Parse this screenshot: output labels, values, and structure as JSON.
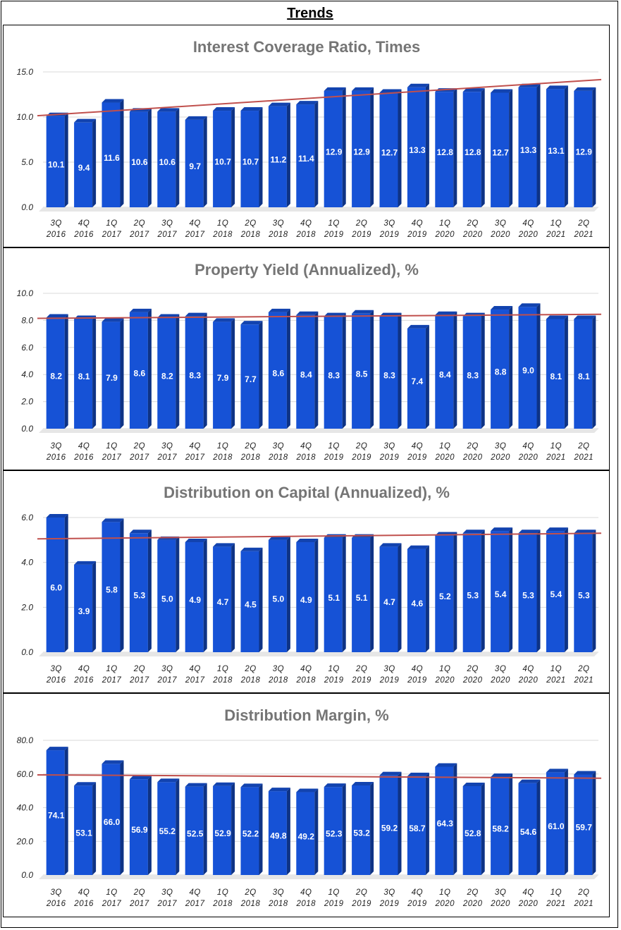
{
  "page": {
    "title": "Trends"
  },
  "chart_data": [
    {
      "type": "bar",
      "title": "Interest Coverage Ratio, Times",
      "categories": [
        [
          "3Q",
          "2016"
        ],
        [
          "4Q",
          "2016"
        ],
        [
          "1Q",
          "2017"
        ],
        [
          "2Q",
          "2017"
        ],
        [
          "3Q",
          "2017"
        ],
        [
          "4Q",
          "2017"
        ],
        [
          "1Q",
          "2018"
        ],
        [
          "2Q",
          "2018"
        ],
        [
          "3Q",
          "2018"
        ],
        [
          "4Q",
          "2018"
        ],
        [
          "1Q",
          "2019"
        ],
        [
          "2Q",
          "2019"
        ],
        [
          "3Q",
          "2019"
        ],
        [
          "4Q",
          "2019"
        ],
        [
          "1Q",
          "2020"
        ],
        [
          "2Q",
          "2020"
        ],
        [
          "3Q",
          "2020"
        ],
        [
          "4Q",
          "2020"
        ],
        [
          "1Q",
          "2021"
        ],
        [
          "2Q",
          "2021"
        ]
      ],
      "values": [
        10.1,
        9.4,
        11.6,
        10.6,
        10.6,
        9.7,
        10.7,
        10.7,
        11.2,
        11.4,
        12.9,
        12.9,
        12.7,
        13.3,
        12.8,
        12.8,
        12.7,
        13.3,
        13.1,
        12.9
      ],
      "yticks": [
        "0.0",
        "5.0",
        "10.0",
        "15.0"
      ],
      "ylim": [
        0,
        15
      ],
      "trendline": [
        10.15,
        14.15
      ],
      "grid": true,
      "bar_color": "#1652d6",
      "trend_color": "#c0504d"
    },
    {
      "type": "bar",
      "title": "Property Yield (Annualized), %",
      "categories": [
        [
          "3Q",
          "2016"
        ],
        [
          "4Q",
          "2016"
        ],
        [
          "1Q",
          "2017"
        ],
        [
          "2Q",
          "2017"
        ],
        [
          "3Q",
          "2017"
        ],
        [
          "4Q",
          "2017"
        ],
        [
          "1Q",
          "2018"
        ],
        [
          "2Q",
          "2018"
        ],
        [
          "3Q",
          "2018"
        ],
        [
          "4Q",
          "2018"
        ],
        [
          "1Q",
          "2019"
        ],
        [
          "2Q",
          "2019"
        ],
        [
          "3Q",
          "2019"
        ],
        [
          "4Q",
          "2019"
        ],
        [
          "1Q",
          "2020"
        ],
        [
          "2Q",
          "2020"
        ],
        [
          "3Q",
          "2020"
        ],
        [
          "4Q",
          "2020"
        ],
        [
          "1Q",
          "2021"
        ],
        [
          "2Q",
          "2021"
        ]
      ],
      "values": [
        8.2,
        8.1,
        7.9,
        8.6,
        8.2,
        8.3,
        7.9,
        7.7,
        8.6,
        8.4,
        8.3,
        8.5,
        8.3,
        7.4,
        8.4,
        8.3,
        8.8,
        9.0,
        8.1,
        8.1
      ],
      "yticks": [
        "0.0",
        "2.0",
        "4.0",
        "6.0",
        "8.0",
        "10.0"
      ],
      "ylim": [
        0,
        10
      ],
      "trendline": [
        8.15,
        8.45
      ],
      "grid": true,
      "bar_color": "#1652d6",
      "trend_color": "#c0504d"
    },
    {
      "type": "bar",
      "title": "Distribution on Capital (Annualized), %",
      "categories": [
        [
          "3Q",
          "2016"
        ],
        [
          "4Q",
          "2016"
        ],
        [
          "1Q",
          "2017"
        ],
        [
          "2Q",
          "2017"
        ],
        [
          "3Q",
          "2017"
        ],
        [
          "4Q",
          "2017"
        ],
        [
          "1Q",
          "2018"
        ],
        [
          "2Q",
          "2018"
        ],
        [
          "3Q",
          "2018"
        ],
        [
          "4Q",
          "2018"
        ],
        [
          "1Q",
          "2019"
        ],
        [
          "2Q",
          "2019"
        ],
        [
          "3Q",
          "2019"
        ],
        [
          "4Q",
          "2019"
        ],
        [
          "1Q",
          "2020"
        ],
        [
          "2Q",
          "2020"
        ],
        [
          "3Q",
          "2020"
        ],
        [
          "4Q",
          "2020"
        ],
        [
          "1Q",
          "2021"
        ],
        [
          "2Q",
          "2021"
        ]
      ],
      "values": [
        6.0,
        3.9,
        5.8,
        5.3,
        5.0,
        4.9,
        4.7,
        4.5,
        5.0,
        4.9,
        5.1,
        5.1,
        4.7,
        4.6,
        5.2,
        5.3,
        5.4,
        5.3,
        5.4,
        5.3
      ],
      "yticks": [
        "0.0",
        "2.0",
        "4.0",
        "6.0"
      ],
      "ylim": [
        0,
        6
      ],
      "trendline": [
        5.05,
        5.3
      ],
      "grid": true,
      "bar_color": "#1652d6",
      "trend_color": "#c0504d"
    },
    {
      "type": "bar",
      "title": "Distribution Margin, %",
      "categories": [
        [
          "3Q",
          "2016"
        ],
        [
          "4Q",
          "2016"
        ],
        [
          "1Q",
          "2017"
        ],
        [
          "2Q",
          "2017"
        ],
        [
          "3Q",
          "2017"
        ],
        [
          "4Q",
          "2017"
        ],
        [
          "1Q",
          "2018"
        ],
        [
          "2Q",
          "2018"
        ],
        [
          "3Q",
          "2018"
        ],
        [
          "4Q",
          "2018"
        ],
        [
          "1Q",
          "2019"
        ],
        [
          "2Q",
          "2019"
        ],
        [
          "3Q",
          "2019"
        ],
        [
          "4Q",
          "2019"
        ],
        [
          "1Q",
          "2020"
        ],
        [
          "2Q",
          "2020"
        ],
        [
          "3Q",
          "2020"
        ],
        [
          "4Q",
          "2020"
        ],
        [
          "1Q",
          "2021"
        ],
        [
          "2Q",
          "2021"
        ]
      ],
      "values": [
        74.1,
        53.1,
        66.0,
        56.9,
        55.2,
        52.5,
        52.9,
        52.2,
        49.8,
        49.2,
        52.3,
        53.2,
        59.2,
        58.7,
        64.3,
        52.8,
        58.2,
        54.6,
        61.0,
        59.7
      ],
      "yticks": [
        "0.0",
        "20.0",
        "40.0",
        "60.0",
        "80.0"
      ],
      "ylim": [
        0,
        80
      ],
      "trendline": [
        59.5,
        57.5
      ],
      "grid": true,
      "bar_color": "#1652d6",
      "trend_color": "#c0504d"
    }
  ]
}
